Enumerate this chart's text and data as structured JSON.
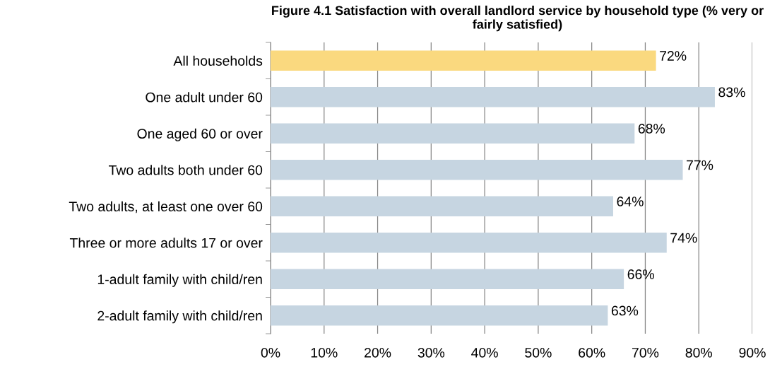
{
  "chart_data": {
    "type": "bar",
    "orientation": "horizontal",
    "title": "Figure 4.1 Satisfaction with overall landlord service by household type (% very or fairly satisfied)",
    "categories": [
      "All households",
      "One adult under 60",
      "One aged 60 or over",
      "Two adults both under 60",
      "Two adults, at least one over 60",
      "Three or more adults 17 or over",
      "1-adult family with child/ren",
      "2-adult family with child/ren"
    ],
    "values": [
      72,
      83,
      68,
      77,
      64,
      74,
      66,
      63
    ],
    "colors": [
      "#fad97f",
      "#c6d5e1",
      "#c6d5e1",
      "#c6d5e1",
      "#c6d5e1",
      "#c6d5e1",
      "#c6d5e1",
      "#c6d5e1"
    ],
    "value_labels": [
      "72%",
      "83%",
      "68%",
      "77%",
      "64%",
      "74%",
      "66%",
      "63%"
    ],
    "xlim": [
      0,
      90
    ],
    "xticks": [
      {
        "value": 0,
        "label": "0%"
      },
      {
        "value": 10,
        "label": "10%"
      },
      {
        "value": 20,
        "label": "20%"
      },
      {
        "value": 30,
        "label": "30%"
      },
      {
        "value": 40,
        "label": "40%"
      },
      {
        "value": 50,
        "label": "50%"
      },
      {
        "value": 60,
        "label": "60%"
      },
      {
        "value": 70,
        "label": "70%"
      },
      {
        "value": 80,
        "label": "80%"
      },
      {
        "value": 90,
        "label": "90%"
      }
    ],
    "grid": "x"
  }
}
